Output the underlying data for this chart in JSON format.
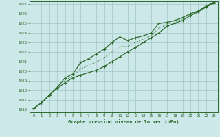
{
  "xlabel": "Graphe pression niveau de la mer (hPa)",
  "hours": [
    0,
    1,
    2,
    3,
    4,
    5,
    6,
    7,
    8,
    9,
    10,
    11,
    12,
    13,
    14,
    15,
    16,
    17,
    18,
    19,
    20,
    21,
    22,
    23
  ],
  "line1": [
    1016.1,
    1016.7,
    1017.5,
    1018.2,
    1018.8,
    1019.3,
    1019.6,
    1019.85,
    1020.1,
    1020.5,
    1021.0,
    1021.5,
    1022.0,
    1022.5,
    1023.0,
    1023.5,
    1024.0,
    1024.7,
    1025.0,
    1025.3,
    1025.8,
    1026.2,
    1026.7,
    1027.1
  ],
  "line2": [
    1016.1,
    1016.7,
    1017.5,
    1018.3,
    1019.3,
    1019.7,
    1020.9,
    1021.3,
    1021.8,
    1022.3,
    1023.0,
    1023.6,
    1023.2,
    1023.5,
    1023.7,
    1024.0,
    1025.0,
    1025.1,
    1025.3,
    1025.6,
    1026.0,
    1026.3,
    1026.8,
    1027.2
  ],
  "line3": [
    1016.1,
    1016.7,
    1017.5,
    1018.25,
    1019.05,
    1019.5,
    1020.25,
    1020.6,
    1020.95,
    1021.4,
    1022.0,
    1022.55,
    1022.6,
    1023.0,
    1023.35,
    1023.75,
    1024.5,
    1024.9,
    1025.15,
    1025.45,
    1025.9,
    1026.25,
    1026.75,
    1027.15
  ],
  "marker_hours": [
    0,
    1,
    2,
    3,
    4,
    5,
    6,
    7,
    8,
    9,
    10,
    11,
    12,
    13,
    14,
    15,
    16,
    17,
    18,
    19,
    20,
    21,
    22,
    23
  ],
  "ylim_min": 1016,
  "ylim_max": 1027,
  "bg_color": "#cce8e8",
  "grid_color": "#aacccc",
  "line_color": "#2d6a2d",
  "label_color": "#2d6a2d"
}
